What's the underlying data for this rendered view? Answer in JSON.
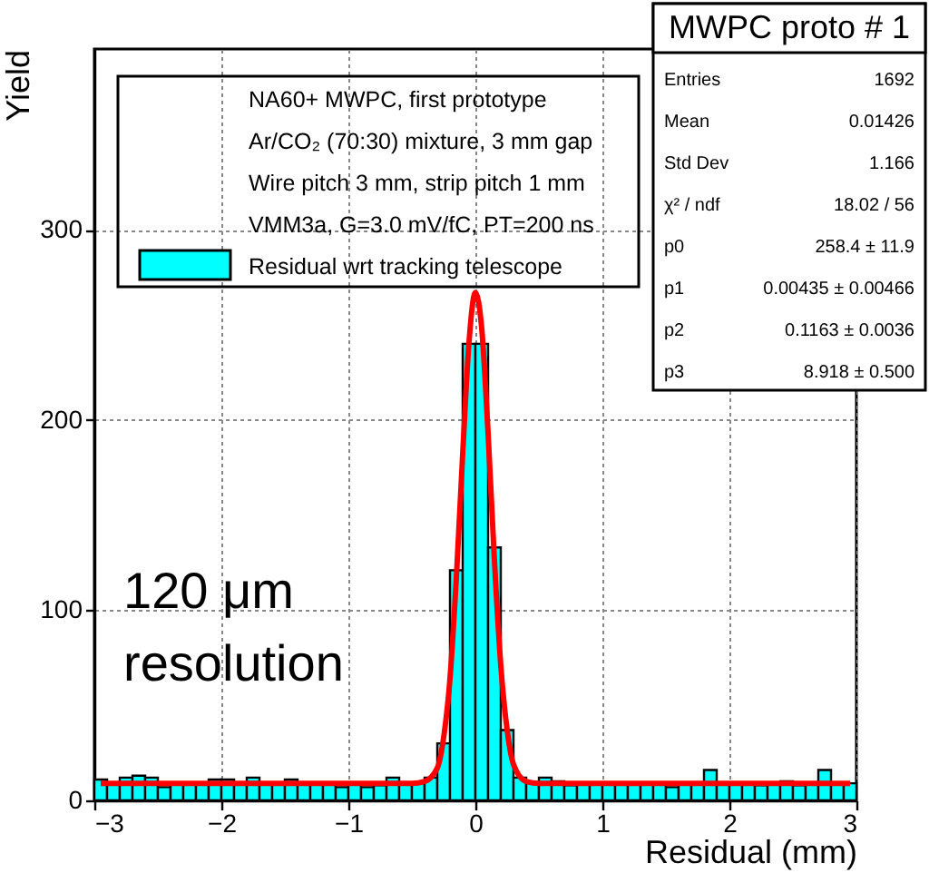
{
  "chart_data": {
    "type": "histogram",
    "xlabel": "Residual (mm)",
    "ylabel": "Yield",
    "xlim": [
      -3,
      3
    ],
    "xticks": [
      -3,
      -2,
      -1,
      0,
      1,
      2,
      3
    ],
    "ylim": [
      0,
      395
    ],
    "yticks": [
      0,
      100,
      200,
      300
    ],
    "grid": true,
    "legend": "top left",
    "series": [
      {
        "name": "Residual wrt tracking telescope",
        "color": "#00ffff",
        "bins": [
          -3.0,
          -2.9,
          -2.8,
          -2.7,
          -2.6,
          -2.5,
          -2.4,
          -2.3,
          -2.2,
          -2.1,
          -2.0,
          -1.9,
          -1.8,
          -1.7,
          -1.6,
          -1.5,
          -1.4,
          -1.3,
          -1.2,
          -1.1,
          -1.0,
          -0.9,
          -0.8,
          -0.7,
          -0.6,
          -0.5,
          -0.4,
          -0.3,
          -0.2,
          -0.1,
          0.0,
          0.1,
          0.2,
          0.3,
          0.4,
          0.5,
          0.6,
          0.7,
          0.8,
          0.9,
          1.0,
          1.1,
          1.2,
          1.3,
          1.4,
          1.5,
          1.6,
          1.7,
          1.8,
          1.9,
          2.0,
          2.1,
          2.2,
          2.3,
          2.4,
          2.5,
          2.6,
          2.7,
          2.8,
          2.9,
          3.0
        ],
        "values": [
          11,
          9,
          12,
          13,
          12,
          7,
          9,
          9,
          9,
          11,
          11,
          9,
          12,
          9,
          9,
          11,
          9,
          9,
          9,
          7,
          9,
          7,
          8,
          12,
          9,
          9,
          12,
          30,
          121,
          240,
          240,
          133,
          37,
          12,
          9,
          12,
          10,
          8,
          9,
          9,
          9,
          9,
          9,
          9,
          9,
          7,
          9,
          9,
          16,
          9,
          9,
          9,
          8,
          9,
          10,
          8,
          9,
          16,
          9,
          9
        ]
      },
      {
        "type": "line",
        "color": "#ff0000",
        "x": [
          -2.95,
          -0.5,
          -0.4,
          -0.3,
          -0.25,
          -0.2,
          -0.15,
          -0.1,
          -0.05,
          0.0,
          0.05,
          0.1,
          0.15,
          0.2,
          0.25,
          0.3,
          0.4,
          0.5,
          2.95
        ],
        "values": [
          9,
          9,
          10,
          17,
          33,
          64,
          117,
          182,
          241,
          267,
          248,
          193,
          126,
          71,
          37,
          19,
          10,
          9,
          9
        ]
      }
    ],
    "annotations": [
      "NA60+ MWPC, first prototype",
      "Ar/CO₂ (70:30) mixture, 3 mm gap",
      "Wire pitch 3 mm, strip pitch 1 mm",
      "VMM3a, G=3.0 mV/fC, PT=200 ns",
      "120 μm resolution",
      "MWPC proto # 1",
      "Entries",
      "1692",
      "Mean",
      "0.01426",
      "Std Dev",
      "1.166",
      "χ² / ndf",
      "18.02 / 56",
      "p0",
      "258.4 ± 11.9",
      "p1",
      "0.00435 ± 0.00466",
      "p2",
      "0.1163 ± 0.0036",
      "p3",
      "8.918 ± 0.500"
    ]
  }
}
